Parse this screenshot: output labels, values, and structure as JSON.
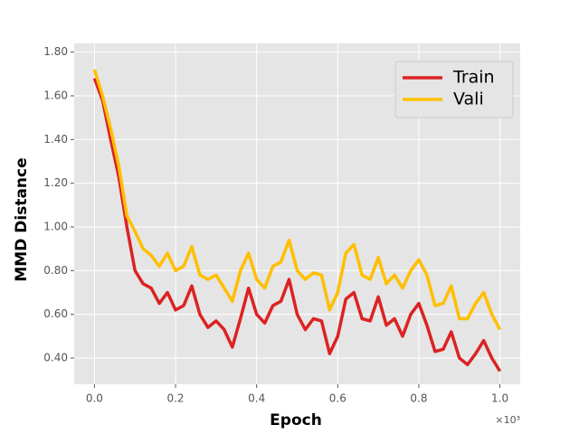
{
  "chart_data": {
    "type": "line",
    "xlabel": "Epoch",
    "ylabel": "MMD Distance",
    "x_offset_label": "×10³",
    "x": [
      0.0,
      0.02,
      0.04,
      0.06,
      0.08,
      0.1,
      0.12,
      0.14,
      0.16,
      0.18,
      0.2,
      0.22,
      0.24,
      0.26,
      0.28,
      0.3,
      0.32,
      0.34,
      0.36,
      0.38,
      0.4,
      0.42,
      0.44,
      0.46,
      0.48,
      0.5,
      0.52,
      0.54,
      0.56,
      0.58,
      0.6,
      0.62,
      0.64,
      0.66,
      0.68,
      0.7,
      0.72,
      0.74,
      0.76,
      0.78,
      0.8,
      0.82,
      0.84,
      0.86,
      0.88,
      0.9,
      0.92,
      0.94,
      0.96,
      0.98,
      1.0
    ],
    "series": [
      {
        "name": "Train",
        "color": "#dc2222",
        "values": [
          1.68,
          1.58,
          1.4,
          1.23,
          1.0,
          0.8,
          0.74,
          0.72,
          0.65,
          0.7,
          0.62,
          0.64,
          0.73,
          0.6,
          0.54,
          0.57,
          0.53,
          0.45,
          0.58,
          0.72,
          0.6,
          0.56,
          0.64,
          0.66,
          0.76,
          0.6,
          0.53,
          0.58,
          0.57,
          0.42,
          0.5,
          0.67,
          0.7,
          0.58,
          0.57,
          0.68,
          0.55,
          0.58,
          0.5,
          0.6,
          0.65,
          0.55,
          0.43,
          0.44,
          0.52,
          0.4,
          0.37,
          0.42,
          0.48,
          0.4,
          0.34
        ]
      },
      {
        "name": "Vali",
        "color": "#ffbf00",
        "values": [
          1.72,
          1.6,
          1.45,
          1.28,
          1.05,
          0.98,
          0.9,
          0.87,
          0.82,
          0.88,
          0.8,
          0.82,
          0.91,
          0.78,
          0.76,
          0.78,
          0.72,
          0.66,
          0.8,
          0.88,
          0.76,
          0.72,
          0.82,
          0.84,
          0.94,
          0.8,
          0.76,
          0.79,
          0.78,
          0.62,
          0.7,
          0.88,
          0.92,
          0.78,
          0.76,
          0.86,
          0.74,
          0.78,
          0.72,
          0.8,
          0.85,
          0.78,
          0.64,
          0.65,
          0.73,
          0.58,
          0.58,
          0.65,
          0.7,
          0.6,
          0.53
        ]
      }
    ],
    "xlim": [
      -0.05,
      1.05
    ],
    "ylim": [
      0.28,
      1.84
    ],
    "xticks": [
      {
        "value": 0,
        "label": "0.0"
      },
      {
        "value": 0.2,
        "label": "0.2"
      },
      {
        "value": 0.4,
        "label": "0.4"
      },
      {
        "value": 0.6,
        "label": "0.6"
      },
      {
        "value": 0.8,
        "label": "0.8"
      },
      {
        "value": 1,
        "label": "1.0"
      }
    ],
    "yticks": [
      {
        "value": 0.4,
        "label": "0.40"
      },
      {
        "value": 0.6,
        "label": "0.60"
      },
      {
        "value": 0.8,
        "label": "0.80"
      },
      {
        "value": 1,
        "label": "1.00"
      },
      {
        "value": 1.2,
        "label": "1.20"
      },
      {
        "value": 1.4,
        "label": "1.40"
      },
      {
        "value": 1.6,
        "label": "1.60"
      },
      {
        "value": 1.8,
        "label": "1.80"
      }
    ],
    "grid": true,
    "legend": "upper right"
  }
}
